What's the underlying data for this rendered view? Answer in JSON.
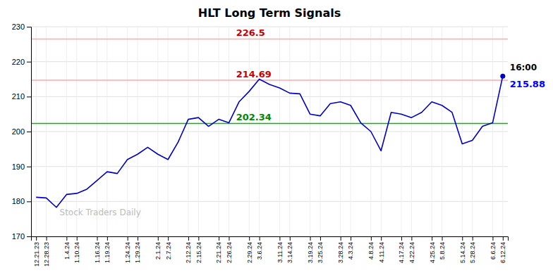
{
  "chart_data": {
    "type": "line",
    "title": "HLT Long Term Signals",
    "categories": [
      "12.21.23",
      "12.28.23",
      null,
      "1.4.24",
      "1.10.24",
      null,
      "1.16.24",
      "1.19.24",
      null,
      "1.24.24",
      "1.29.24",
      null,
      "2.1.24",
      "2.7.24",
      null,
      "2.12.24",
      "2.15.24",
      null,
      "2.21.24",
      "2.26.24",
      null,
      "2.29.24",
      "3.6.24",
      null,
      "3.11.24",
      "3.14.24",
      null,
      "3.19.24",
      "3.25.24",
      null,
      "3.28.24",
      "4.3.24",
      null,
      "4.8.24",
      "4.11.24",
      null,
      "4.17.24",
      "4.22.24",
      null,
      "4.25.24",
      "5.8.24",
      null,
      "5.14.24",
      "5.28.24",
      null,
      "6.6.24",
      "6.12.24"
    ],
    "values": [
      181.2,
      181.0,
      178.3,
      182.0,
      182.3,
      183.5,
      186.0,
      188.5,
      188.0,
      192.0,
      193.5,
      195.5,
      193.5,
      192.0,
      197.0,
      203.5,
      204.0,
      201.5,
      203.5,
      202.5,
      208.5,
      211.5,
      215.0,
      213.5,
      212.5,
      211.0,
      210.8,
      205.0,
      204.5,
      208.0,
      208.5,
      207.5,
      202.5,
      200.0,
      194.5,
      205.5,
      205.0,
      204.0,
      205.5,
      208.5,
      207.5,
      205.5,
      196.5,
      197.5,
      201.5,
      202.5,
      215.88
    ],
    "color": "#0000cc",
    "ylim": [
      170,
      230
    ],
    "yticks": [
      170,
      180,
      190,
      200,
      210,
      220,
      230
    ],
    "grid": true,
    "reference_lines": [
      {
        "value": 214.69,
        "label": "214.69",
        "color": "#ffaaaa",
        "label_color": "#cc0000"
      },
      {
        "value": 226.5,
        "label": "226.5",
        "color": "#ffaaaa",
        "label_color": "#cc0000"
      },
      {
        "value": 202.34,
        "label": "202.34",
        "color": "#00bb00",
        "label_color": "#008800"
      }
    ],
    "annotations": [
      {
        "text": "16:00",
        "color": "#000000"
      },
      {
        "text": "215.88",
        "color": "#0000ff"
      }
    ],
    "watermark": {
      "text": "Stock Traders Daily",
      "color": "#bbbbbb"
    }
  }
}
